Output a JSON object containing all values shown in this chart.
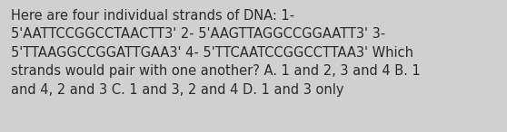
{
  "line1": "Here are four individual strands of DNA: 1-",
  "line2": "5'AATTCCGGCCTAACTT3' 2- 5'AAGTTAGGCCGGAATT3' 3-",
  "line3": "5'TTAAGGCCGGATTGAA3' 4- 5'TTCAATCCGGCCTTAA3' Which",
  "line4": "strands would pair with one another? A. 1 and 2, 3 and 4 B. 1",
  "line5": "and 4, 2 and 3 C. 1 and 3, 2 and 4 D. 1 and 3 only",
  "background_color": "#d0d0d0",
  "text_color": "#2b2b2b",
  "font_size": 10.5,
  "fig_width": 5.58,
  "fig_height": 1.46,
  "dpi": 100
}
